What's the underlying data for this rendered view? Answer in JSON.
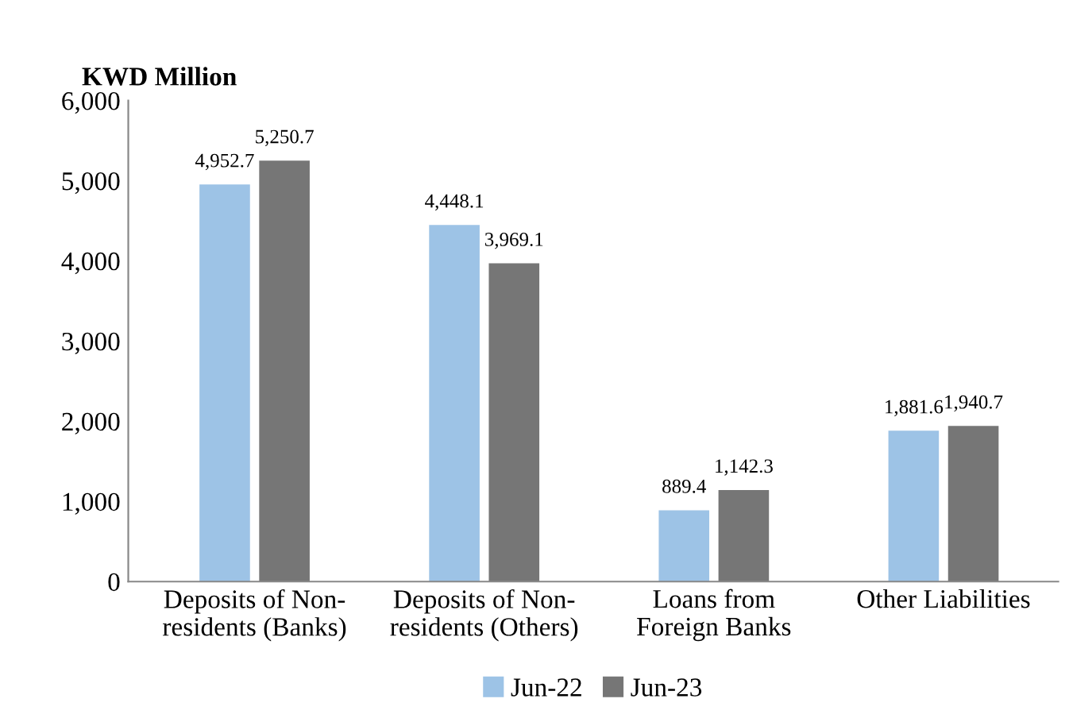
{
  "chart_data": {
    "type": "bar",
    "ylabel": "KWD Million",
    "categories": [
      "Deposits of Non-\nresidents (Banks)",
      "Deposits of Non-\nresidents (Others)",
      "Loans from\nForeign Banks",
      "Other Liabilities"
    ],
    "series": [
      {
        "name": "Jun-22",
        "color": "#9dc3e6",
        "values": [
          4952.7,
          4448.1,
          889.4,
          1881.6
        ],
        "value_labels": [
          "4,952.7",
          "4,448.1",
          "889.4",
          "1,881.6"
        ]
      },
      {
        "name": "Jun-23",
        "color": "#767676",
        "values": [
          5250.7,
          3969.1,
          1142.3,
          1940.7
        ],
        "value_labels": [
          "5,250.7",
          "3,969.1",
          "1,142.3",
          "1,940.7"
        ]
      }
    ],
    "ylim": [
      0,
      6000
    ],
    "yticks": [
      0,
      {
        "value": 1000,
        "label": "1,000"
      },
      {
        "value": 2000,
        "label": "2,000"
      },
      {
        "value": 3000,
        "label": "3,000"
      },
      {
        "value": 4000,
        "label": "4,000"
      },
      {
        "value": 5000,
        "label": "5,000"
      },
      {
        "value": 6000,
        "label": "6,000"
      }
    ],
    "grid": false,
    "legend": "bottom"
  }
}
